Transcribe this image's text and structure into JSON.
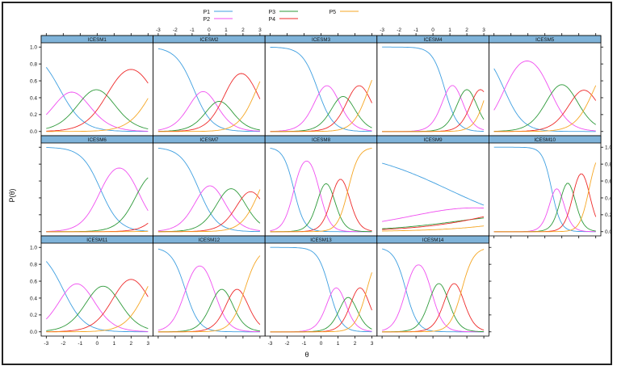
{
  "chart_data": {
    "type": "line",
    "title": "",
    "xlabel": "θ",
    "ylabel": "P(θ)",
    "xlim": [
      -3.3,
      3.3
    ],
    "ylim": [
      -0.05,
      1.05
    ],
    "x_ticks": [
      "-3",
      "-2",
      "-1",
      "0",
      "1",
      "2",
      "3"
    ],
    "y_ticks": [
      "0.0",
      "0.2",
      "0.4",
      "0.6",
      "0.8",
      "1.0"
    ],
    "legend_position": "top",
    "legend": [
      {
        "name": "P1",
        "color": "#3f9fe0"
      },
      {
        "name": "P2",
        "color": "#f04ff0"
      },
      {
        "name": "P3",
        "color": "#2e9a3a"
      },
      {
        "name": "P4",
        "color": "#ee2a2a"
      },
      {
        "name": "P5",
        "color": "#f5a623"
      }
    ],
    "panels": [
      {
        "name": "ICESM1",
        "a": 0.85,
        "b": [
          -2.2,
          -0.8,
          0.7,
          3.3
        ]
      },
      {
        "name": "ICESM2",
        "a": 1.1,
        "b": [
          -0.9,
          0.2,
          1.0,
          2.8
        ]
      },
      {
        "name": "ICESM3",
        "a": 1.3,
        "b": [
          -0.2,
          0.9,
          1.7,
          2.8
        ]
      },
      {
        "name": "ICESM4",
        "a": 1.6,
        "b": [
          0.7,
          1.6,
          2.4,
          3.2
        ]
      },
      {
        "name": "ICESM5",
        "a": 1.05,
        "b": [
          -2.4,
          0.3,
          1.7,
          2.9
        ]
      },
      {
        "name": "ICESM6",
        "a": 1.05,
        "b": [
          0.2,
          2.4,
          4.2,
          6.0
        ]
      },
      {
        "name": "ICESM7",
        "a": 1.1,
        "b": [
          -0.6,
          0.7,
          1.9,
          3.0
        ]
      },
      {
        "name": "ICESM8",
        "a": 1.9,
        "b": [
          -1.6,
          -0.1,
          0.7,
          1.6
        ]
      },
      {
        "name": "ICESM9",
        "a": 0.22,
        "b": [
          0.9,
          4.0,
          6.0,
          10.0
        ]
      },
      {
        "name": "ICESM10",
        "a": 2.2,
        "b": [
          0.4,
          1.0,
          1.7,
          2.6
        ]
      },
      {
        "name": "ICESM11",
        "a": 0.95,
        "b": [
          -2.0,
          -0.4,
          1.1,
          2.9
        ]
      },
      {
        "name": "ICESM12",
        "a": 1.45,
        "b": [
          -1.4,
          0.3,
          1.2,
          2.1
        ]
      },
      {
        "name": "ICESM13",
        "a": 1.7,
        "b": [
          0.5,
          1.3,
          1.9,
          2.7
        ]
      },
      {
        "name": "ICESM14",
        "a": 1.7,
        "b": [
          -1.6,
          -0.1,
          0.8,
          1.7
        ]
      }
    ]
  }
}
